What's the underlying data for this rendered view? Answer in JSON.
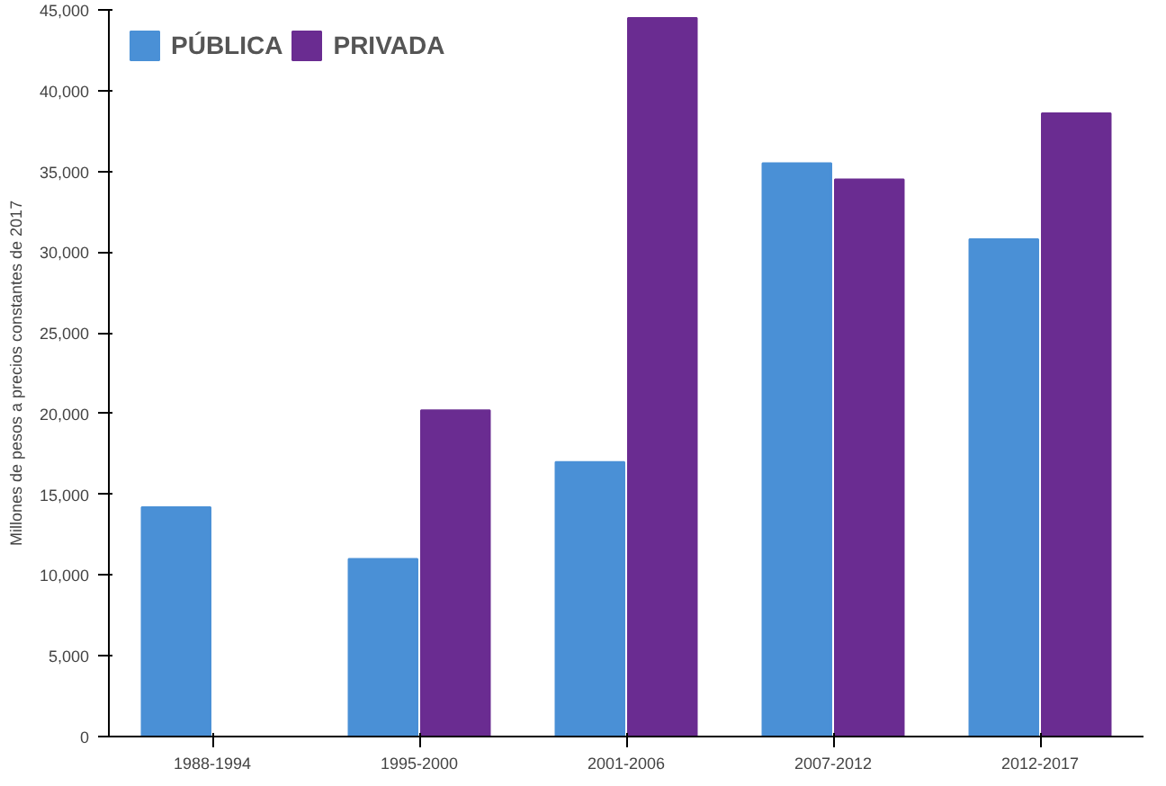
{
  "chart_data": {
    "type": "bar",
    "ylabel": "Millones de pesos a precios constantes de 2017",
    "categories": [
      "1988-1994",
      "1995-2000",
      "2001-2006",
      "2007-2012",
      "2012-2017"
    ],
    "series": [
      {
        "name": "PÚBLICA",
        "color": "#4a90d6",
        "values": [
          14200,
          11000,
          17000,
          35500,
          30800
        ]
      },
      {
        "name": "PRIVADA",
        "color": "#6a2c91",
        "values": [
          0,
          20200,
          44500,
          34500,
          38600
        ]
      }
    ],
    "ylim": [
      0,
      45000
    ],
    "yticks": [
      {
        "value": 0,
        "label": "0"
      },
      {
        "value": 5000,
        "label": "5,000"
      },
      {
        "value": 10000,
        "label": "10,000"
      },
      {
        "value": 15000,
        "label": "15,000"
      },
      {
        "value": 20000,
        "label": "20,000"
      },
      {
        "value": 25000,
        "label": "25,000"
      },
      {
        "value": 30000,
        "label": "30,000"
      },
      {
        "value": 35000,
        "label": "35,000"
      },
      {
        "value": 40000,
        "label": "40,000"
      },
      {
        "value": 45000,
        "label": "45,000"
      }
    ],
    "grid": false,
    "legend": "top left"
  }
}
